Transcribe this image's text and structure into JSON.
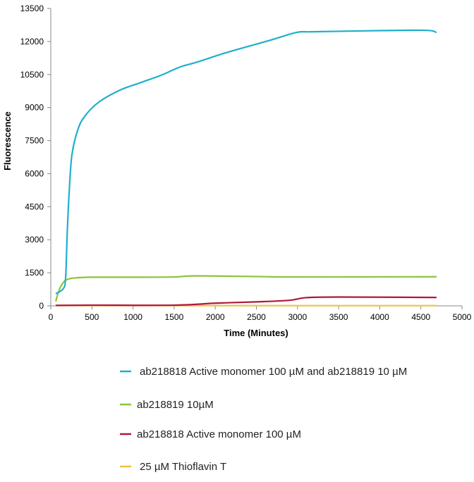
{
  "chart_data": {
    "type": "line",
    "title": "",
    "xlabel": "Time (Minutes)",
    "ylabel": "Fluorescence",
    "xlim": [
      0,
      5000
    ],
    "ylim": [
      0,
      13500
    ],
    "xticks": [
      0,
      500,
      1000,
      1500,
      2000,
      2500,
      3000,
      3500,
      4000,
      4500,
      5000
    ],
    "yticks": [
      0,
      1500,
      3000,
      4500,
      6000,
      7500,
      9000,
      10500,
      12000,
      13500
    ],
    "grid": false,
    "legend_position": "bottom",
    "series": [
      {
        "name": "ab218818 Active monomer 100 µM and ab218819 10 µM",
        "color": "#1fb0cc",
        "x": [
          60,
          150,
          180,
          200,
          225,
          257,
          326,
          412,
          583,
          840,
          1098,
          1355,
          1570,
          1784,
          2127,
          2642,
          2985,
          3156,
          3671,
          4528,
          4690
        ],
        "y": [
          550,
          770,
          1250,
          3330,
          5250,
          6850,
          7965,
          8600,
          9245,
          9790,
          10140,
          10490,
          10840,
          11070,
          11485,
          12030,
          12410,
          12440,
          12475,
          12510,
          12410
        ]
      },
      {
        "name": "ab218819 10µM",
        "color": "#8cc43c",
        "x": [
          60,
          100,
          150,
          200,
          300,
          500,
          1000,
          1500,
          1750,
          2500,
          3000,
          4690
        ],
        "y": [
          200,
          700,
          1050,
          1200,
          1270,
          1300,
          1300,
          1310,
          1360,
          1330,
          1310,
          1320
        ]
      },
      {
        "name": "ab218818 Active monomer 100 µM",
        "color": "#b0183c",
        "x": [
          60,
          500,
          1500,
          2000,
          2500,
          2900,
          3100,
          3500,
          4690
        ],
        "y": [
          20,
          30,
          30,
          120,
          180,
          250,
          370,
          400,
          380
        ]
      },
      {
        "name": "25 µM Thioflavin T",
        "color": "#f0c040",
        "x": [
          60,
          1000,
          2000,
          3000,
          4690
        ],
        "y": [
          10,
          10,
          10,
          10,
          10
        ]
      }
    ]
  }
}
